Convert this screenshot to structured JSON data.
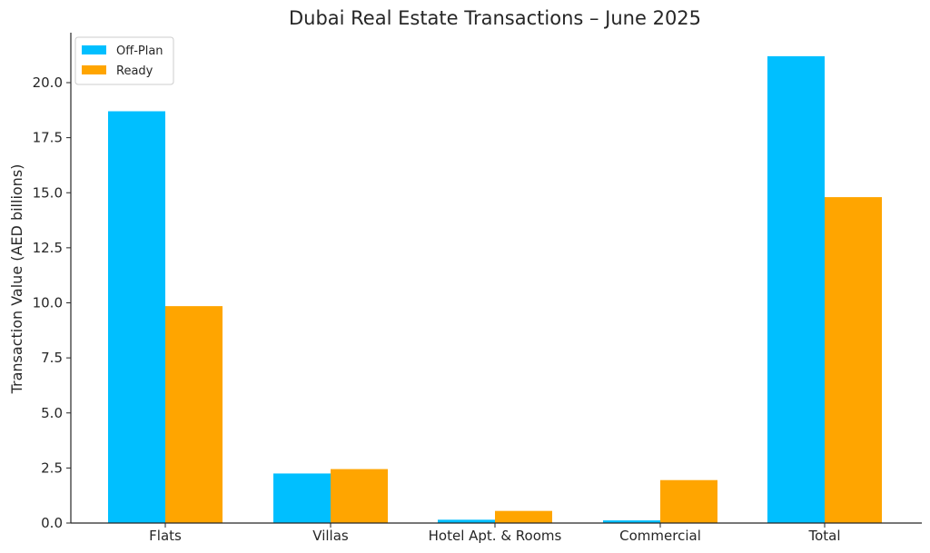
{
  "chart_data": {
    "type": "bar",
    "title": "Dubai Real Estate Transactions – June 2025",
    "xlabel": "",
    "ylabel": "Transaction Value (AED billions)",
    "categories": [
      "Flats",
      "Villas",
      "Hotel Apt. & Rooms",
      "Commercial",
      "Total"
    ],
    "series": [
      {
        "name": "Off-Plan",
        "color": "#00BFFF",
        "values": [
          18.7,
          2.25,
          0.15,
          0.12,
          21.2
        ]
      },
      {
        "name": "Ready",
        "color": "#FFA500",
        "values": [
          9.85,
          2.45,
          0.55,
          1.95,
          14.8
        ]
      }
    ],
    "ylim": [
      0,
      22.3
    ],
    "yticks": [
      "0.0",
      "2.5",
      "5.0",
      "7.5",
      "10.0",
      "12.5",
      "15.0",
      "17.5",
      "20.0"
    ],
    "ytick_values": [
      0,
      2.5,
      5,
      7.5,
      10,
      12.5,
      15,
      17.5,
      20
    ],
    "grid": false,
    "legend_position": "top-left"
  }
}
